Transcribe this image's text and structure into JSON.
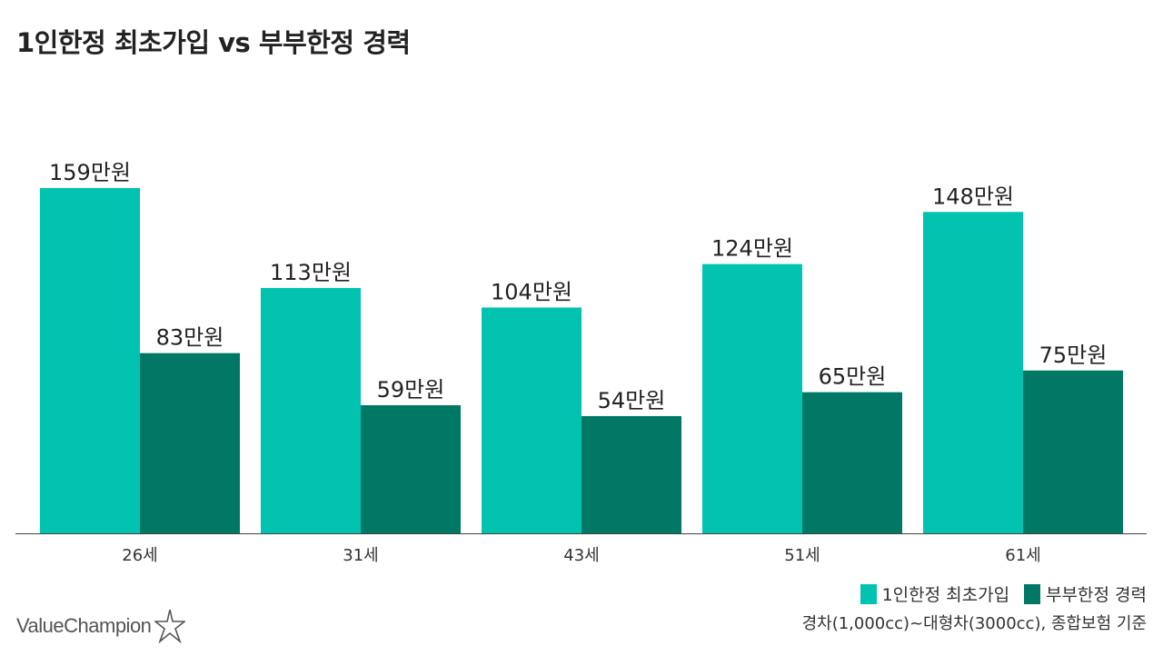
{
  "chart_data": {
    "type": "bar",
    "title": "1인한정 최초가입 vs 부부한정 경력",
    "categories": [
      "26세",
      "31세",
      "43세",
      "51세",
      "61세"
    ],
    "series": [
      {
        "name": "1인한정 최초가입",
        "values": [
          159,
          113,
          104,
          124,
          148
        ],
        "color": "#02c2b0"
      },
      {
        "name": "부부한정 경력",
        "values": [
          83,
          59,
          54,
          65,
          75
        ],
        "color": "#007866"
      }
    ],
    "value_suffix": "만원",
    "ylim": [
      0,
      159
    ],
    "grid": false,
    "legend_placement": "bottom-right",
    "note": "경차(1,000cc)~대형차(3000cc), 종합보험 기준"
  },
  "brand": {
    "logo_text": "ValueChampion",
    "logo_icon": "star-icon"
  }
}
